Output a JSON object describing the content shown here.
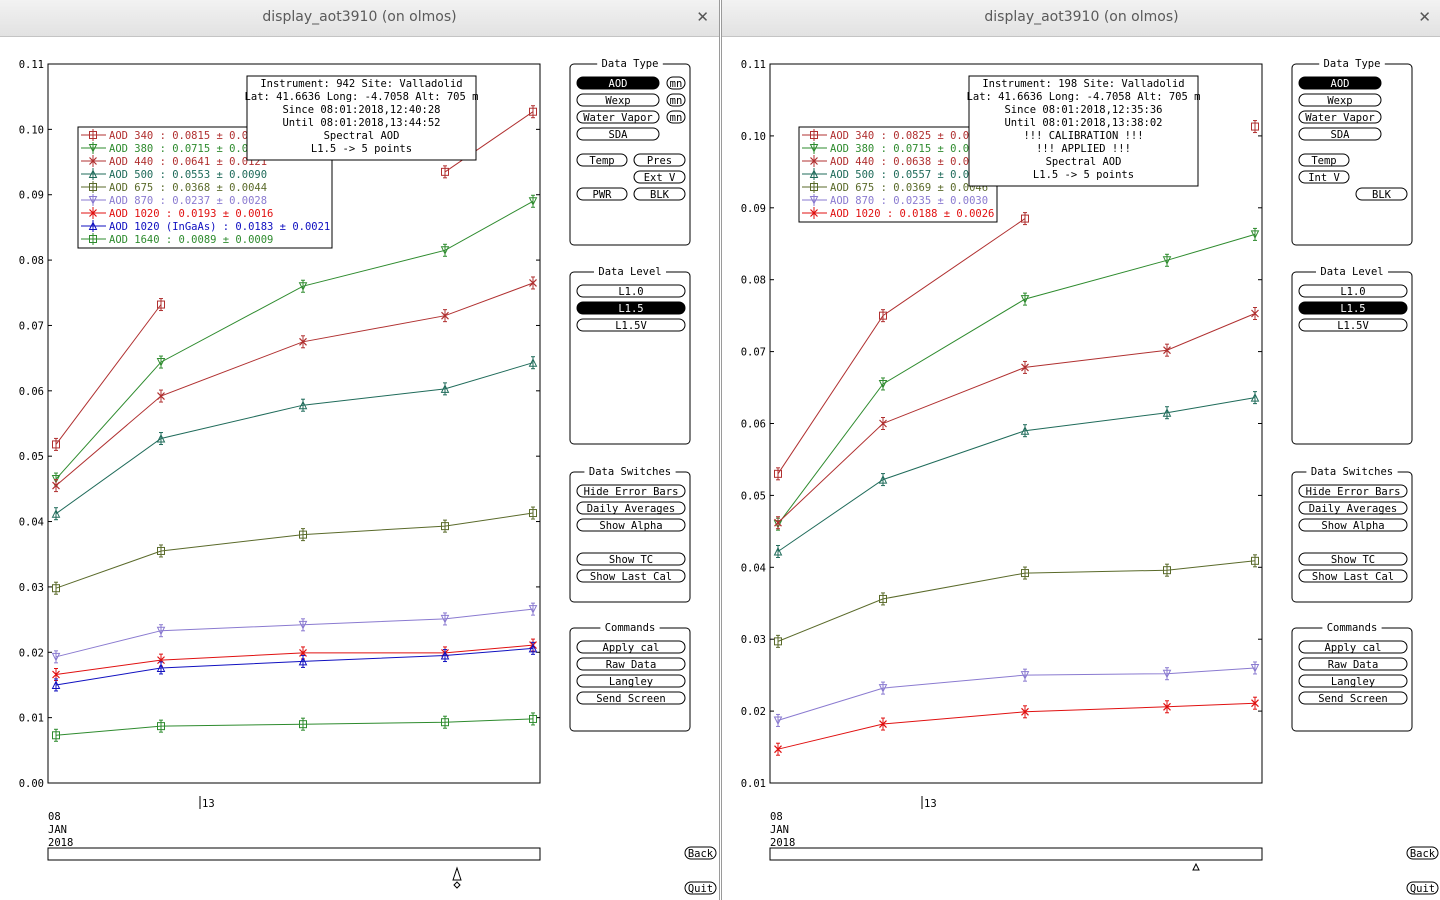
{
  "windows": [
    {
      "title": "display_aot3910 (on olmos)",
      "info_lines": [
        "Instrument: 942 Site: Valladolid",
        "Lat: 41.6636 Long: -4.7058 Alt: 705 m",
        "Since 08:01:2018,12:40:28",
        "Until 08:01:2018,13:44:52",
        "Spectral AOD",
        "L1.5 -> 5 points"
      ],
      "legend": [
        {
          "label": "AOD 340  : 0.0815 ± 0.0",
          "color": "#b03030",
          "marker": "square"
        },
        {
          "label": "AOD 380  : 0.0715 ± 0.0",
          "color": "#2e8b2e",
          "marker": "tri-down"
        },
        {
          "label": "AOD 440  : 0.0641 ± 0.0121",
          "color": "#b03030",
          "marker": "x"
        },
        {
          "label": "AOD 500  : 0.0553 ± 0.0090",
          "color": "#1f6b5a",
          "marker": "tri-up"
        },
        {
          "label": "AOD 675  : 0.0368 ± 0.0044",
          "color": "#5a6a2a",
          "marker": "square"
        },
        {
          "label": "AOD 870  : 0.0237 ± 0.0028",
          "color": "#8a7ad0",
          "marker": "tri-down"
        },
        {
          "label": "AOD 1020  : 0.0193 ± 0.0016",
          "color": "#e01010",
          "marker": "x"
        },
        {
          "label": "AOD 1020 (InGaAs)  : 0.0183 ± 0.0021",
          "color": "#1010c0",
          "marker": "tri-up"
        },
        {
          "label": "AOD 1640  : 0.0089 ± 0.0009",
          "color": "#2e8b2e",
          "marker": "square"
        }
      ],
      "chart_data": {
        "type": "line",
        "y_range": [
          0.0,
          0.11
        ],
        "y_ticks": [
          "0.00",
          "0.01",
          "0.02",
          "0.03",
          "0.04",
          "0.05",
          "0.06",
          "0.07",
          "0.08",
          "0.09",
          "0.10",
          "0.11"
        ],
        "x_tick_labels": [
          "08\nJAN\n2018",
          "13"
        ],
        "series": [
          {
            "name": "AOD 340",
            "color": "#b03030",
            "marker": "square",
            "y": [
              0.0518,
              0.0732,
              null,
              0.0935,
              0.1027
            ]
          },
          {
            "name": "AOD 380",
            "color": "#2e8b2e",
            "marker": "tri-down",
            "y": [
              0.0465,
              0.0644,
              0.076,
              0.0815,
              0.089
            ]
          },
          {
            "name": "AOD 440",
            "color": "#b03030",
            "marker": "x",
            "y": [
              0.0455,
              0.0592,
              0.0675,
              0.0715,
              0.0765
            ]
          },
          {
            "name": "AOD 500",
            "color": "#1f6b5a",
            "marker": "tri-up",
            "y": [
              0.0412,
              0.0527,
              0.0578,
              0.0603,
              0.0643
            ]
          },
          {
            "name": "AOD 675",
            "color": "#5a6a2a",
            "marker": "square",
            "y": [
              0.0298,
              0.0355,
              0.038,
              0.0393,
              0.0413
            ]
          },
          {
            "name": "AOD 870",
            "color": "#8a7ad0",
            "marker": "tri-down",
            "y": [
              0.0193,
              0.0233,
              0.0242,
              0.0251,
              0.0266
            ]
          },
          {
            "name": "AOD 1020",
            "color": "#e01010",
            "marker": "x",
            "y": [
              0.0166,
              0.0188,
              0.0199,
              0.0199,
              0.0211
            ]
          },
          {
            "name": "AOD 1020 (InGaAs)",
            "color": "#1010c0",
            "marker": "tri-up",
            "y": [
              0.015,
              0.0176,
              0.0186,
              0.0195,
              0.0206
            ]
          },
          {
            "name": "AOD 1640",
            "color": "#2e8b2e",
            "marker": "square",
            "y": [
              0.0073,
              0.0087,
              0.009,
              0.0093,
              0.0098
            ]
          }
        ]
      }
    },
    {
      "title": "display_aot3910 (on olmos)",
      "info_lines": [
        "Instrument: 198 Site: Valladolid",
        "Lat: 41.6636 Long: -4.7058 Alt: 705 m",
        "Since 08:01:2018,12:35:36",
        "Until 08:01:2018,13:38:02",
        "!!! CALIBRATION !!!",
        "!!!   APPLIED   !!!",
        "Spectral AOD",
        "L1.5 -> 5 points"
      ],
      "legend": [
        {
          "label": "AOD 340  : 0.0825 ± 0.0",
          "color": "#b03030",
          "marker": "square"
        },
        {
          "label": "AOD 380  : 0.0715 ± 0.0",
          "color": "#2e8b2e",
          "marker": "tri-down"
        },
        {
          "label": "AOD 440  : 0.0638 ± 0.0",
          "color": "#b03030",
          "marker": "x"
        },
        {
          "label": "AOD 500  : 0.0557 ± 0.0",
          "color": "#1f6b5a",
          "marker": "tri-up"
        },
        {
          "label": "AOD 675  : 0.0369 ± 0.0046",
          "color": "#5a6a2a",
          "marker": "square"
        },
        {
          "label": "AOD 870  : 0.0235 ± 0.0030",
          "color": "#8a7ad0",
          "marker": "tri-down"
        },
        {
          "label": "AOD 1020  : 0.0188 ± 0.0026",
          "color": "#e01010",
          "marker": "x"
        }
      ],
      "chart_data": {
        "type": "line",
        "y_range": [
          0.01,
          0.11
        ],
        "y_ticks": [
          "0.01",
          "0.02",
          "0.03",
          "0.04",
          "0.05",
          "0.06",
          "0.07",
          "0.08",
          "0.09",
          "0.10",
          "0.11"
        ],
        "x_tick_labels": [
          "08\nJAN\n2018",
          "13"
        ],
        "series": [
          {
            "name": "AOD 340",
            "color": "#b03030",
            "marker": "square",
            "y": [
              0.053,
              0.075,
              0.0885,
              null,
              0.1013
            ]
          },
          {
            "name": "AOD 380",
            "color": "#2e8b2e",
            "marker": "tri-down",
            "y": [
              0.046,
              0.0655,
              0.0773,
              0.0827,
              0.0863
            ]
          },
          {
            "name": "AOD 440",
            "color": "#b03030",
            "marker": "x",
            "y": [
              0.0462,
              0.06,
              0.0678,
              0.0702,
              0.0753
            ]
          },
          {
            "name": "AOD 500",
            "color": "#1f6b5a",
            "marker": "tri-up",
            "y": [
              0.0422,
              0.0522,
              0.059,
              0.0615,
              0.0636
            ]
          },
          {
            "name": "AOD 675",
            "color": "#5a6a2a",
            "marker": "square",
            "y": [
              0.0297,
              0.0356,
              0.0392,
              0.0396,
              0.0409
            ]
          },
          {
            "name": "AOD 870",
            "color": "#8a7ad0",
            "marker": "tri-down",
            "y": [
              0.0187,
              0.0232,
              0.025,
              0.0252,
              0.026
            ]
          },
          {
            "name": "AOD 1020",
            "color": "#e01010",
            "marker": "x",
            "y": [
              0.0147,
              0.0182,
              0.0199,
              0.0206,
              0.0211
            ]
          }
        ]
      }
    }
  ],
  "panels": {
    "data_type": {
      "title": "Data Type",
      "aod": "AOD",
      "wexp": "Wexp",
      "water_vapor": "Water Vapor",
      "sda": "SDA",
      "mn": "mn",
      "temp": "Temp",
      "pres": "Pres",
      "ext_v": "Ext V",
      "int_v": "Int V",
      "pwr": "PWR",
      "blk": "BLK"
    },
    "data_level": {
      "title": "Data Level",
      "l10": "L1.0",
      "l15": "L1.5",
      "l15v": "L1.5V"
    },
    "data_switches": {
      "title": "Data Switches",
      "hide_error_bars": "Hide Error Bars",
      "daily_averages": "Daily Averages",
      "show_alpha": "Show Alpha",
      "show_tc": "Show TC",
      "show_last_cal": "Show Last Cal"
    },
    "commands": {
      "title": "Commands",
      "apply_cal": "Apply cal",
      "raw_data": "Raw Data",
      "langley": "Langley",
      "send_screen": "Send Screen"
    },
    "back": "Back",
    "quit": "Quit"
  },
  "colors": {
    "frame": "#000000",
    "selected_bg": "#000000",
    "selected_fg": "#ffffff",
    "titlebar": "#e8e8e8"
  }
}
